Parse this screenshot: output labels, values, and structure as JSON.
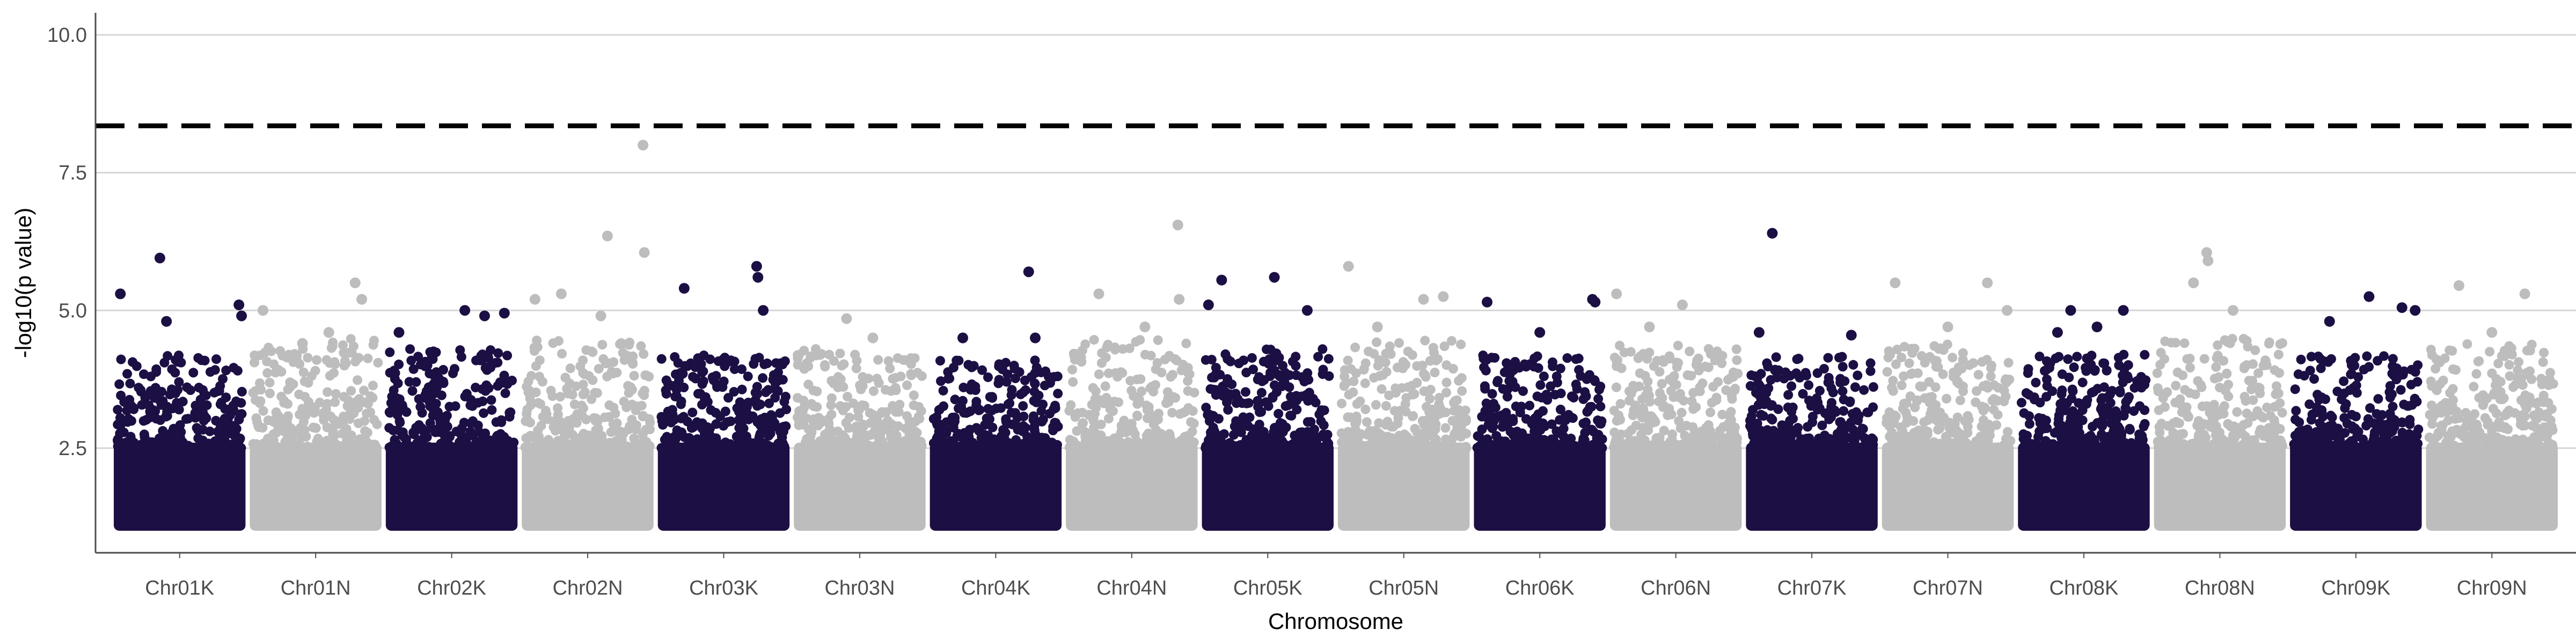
{
  "chart_data": {
    "type": "scatter",
    "subtype": "manhattan",
    "title": "",
    "xlabel": "Chromosome",
    "ylabel": "-log10(p value)",
    "ylim": [
      0.6,
      10.4
    ],
    "y_ticks": [
      2.5,
      5.0,
      7.5,
      10.0
    ],
    "y_tick_labels": [
      "2.5",
      "5.0",
      "7.5",
      "10.0"
    ],
    "grid": "horizontal major",
    "legend": "none",
    "threshold": {
      "value": 8.35,
      "style": "dashed",
      "color": "#000000"
    },
    "point_floor": 1.0,
    "colors": {
      "odd": "#1c0f44",
      "even": "#bdbdbd"
    },
    "categories": [
      "Chr01K",
      "Chr01N",
      "Chr02K",
      "Chr02N",
      "Chr03K",
      "Chr03N",
      "Chr04K",
      "Chr04N",
      "Chr05K",
      "Chr05N",
      "Chr06K",
      "Chr06N",
      "Chr07K",
      "Chr07N",
      "Chr08K",
      "Chr08N",
      "Chr09K",
      "Chr09N"
    ],
    "series": [
      {
        "chromosome": "Chr01K",
        "dense_top": 3.6,
        "outliers": [
          [
            0.05,
            5.3
          ],
          [
            0.35,
            5.95
          ],
          [
            0.4,
            4.8
          ],
          [
            0.95,
            5.1
          ],
          [
            0.97,
            4.9
          ]
        ]
      },
      {
        "chromosome": "Chr01N",
        "dense_top": 3.9,
        "outliers": [
          [
            0.1,
            5.0
          ],
          [
            0.4,
            4.4
          ],
          [
            0.8,
            5.5
          ],
          [
            0.85,
            5.2
          ],
          [
            0.6,
            4.6
          ]
        ]
      },
      {
        "chromosome": "Chr02K",
        "dense_top": 3.7,
        "outliers": [
          [
            0.6,
            5.0
          ],
          [
            0.75,
            4.9
          ],
          [
            0.9,
            4.95
          ],
          [
            0.1,
            4.6
          ]
        ]
      },
      {
        "chromosome": "Chr02N",
        "dense_top": 3.9,
        "outliers": [
          [
            0.1,
            5.2
          ],
          [
            0.3,
            5.3
          ],
          [
            0.65,
            6.35
          ],
          [
            0.92,
            8.0
          ],
          [
            0.93,
            6.05
          ],
          [
            0.6,
            4.9
          ]
        ]
      },
      {
        "chromosome": "Chr03K",
        "dense_top": 3.6,
        "outliers": [
          [
            0.2,
            5.4
          ],
          [
            0.75,
            5.8
          ],
          [
            0.76,
            5.6
          ],
          [
            0.8,
            5.0
          ]
        ]
      },
      {
        "chromosome": "Chr03N",
        "dense_top": 3.7,
        "outliers": [
          [
            0.4,
            4.85
          ],
          [
            0.6,
            4.5
          ],
          [
            0.2,
            4.2
          ]
        ]
      },
      {
        "chromosome": "Chr04K",
        "dense_top": 3.5,
        "outliers": [
          [
            0.25,
            4.5
          ],
          [
            0.75,
            5.7
          ],
          [
            0.8,
            4.5
          ]
        ]
      },
      {
        "chromosome": "Chr04N",
        "dense_top": 3.9,
        "outliers": [
          [
            0.25,
            5.3
          ],
          [
            0.85,
            6.55
          ],
          [
            0.86,
            5.2
          ],
          [
            0.6,
            4.7
          ]
        ]
      },
      {
        "chromosome": "Chr05K",
        "dense_top": 3.7,
        "outliers": [
          [
            0.05,
            5.1
          ],
          [
            0.15,
            5.55
          ],
          [
            0.55,
            5.6
          ],
          [
            0.8,
            5.0
          ]
        ]
      },
      {
        "chromosome": "Chr05N",
        "dense_top": 3.9,
        "outliers": [
          [
            0.08,
            5.8
          ],
          [
            0.65,
            5.2
          ],
          [
            0.8,
            5.25
          ],
          [
            0.3,
            4.7
          ]
        ]
      },
      {
        "chromosome": "Chr06K",
        "dense_top": 3.6,
        "outliers": [
          [
            0.1,
            5.15
          ],
          [
            0.9,
            5.2
          ],
          [
            0.92,
            5.15
          ],
          [
            0.5,
            4.6
          ]
        ]
      },
      {
        "chromosome": "Chr06N",
        "dense_top": 3.8,
        "outliers": [
          [
            0.05,
            5.3
          ],
          [
            0.55,
            5.1
          ],
          [
            0.3,
            4.7
          ]
        ]
      },
      {
        "chromosome": "Chr07K",
        "dense_top": 3.6,
        "outliers": [
          [
            0.2,
            6.4
          ],
          [
            0.1,
            4.6
          ],
          [
            0.8,
            4.55
          ]
        ]
      },
      {
        "chromosome": "Chr07N",
        "dense_top": 3.8,
        "outliers": [
          [
            0.1,
            5.5
          ],
          [
            0.8,
            5.5
          ],
          [
            0.95,
            5.0
          ],
          [
            0.5,
            4.7
          ]
        ]
      },
      {
        "chromosome": "Chr08K",
        "dense_top": 3.6,
        "outliers": [
          [
            0.4,
            5.0
          ],
          [
            0.8,
            5.0
          ],
          [
            0.3,
            4.6
          ],
          [
            0.6,
            4.7
          ]
        ]
      },
      {
        "chromosome": "Chr08N",
        "dense_top": 3.9,
        "outliers": [
          [
            0.4,
            6.05
          ],
          [
            0.41,
            5.9
          ],
          [
            0.3,
            5.5
          ],
          [
            0.6,
            5.0
          ]
        ]
      },
      {
        "chromosome": "Chr09K",
        "dense_top": 3.6,
        "outliers": [
          [
            0.6,
            5.25
          ],
          [
            0.85,
            5.05
          ],
          [
            0.95,
            5.0
          ],
          [
            0.3,
            4.8
          ]
        ]
      },
      {
        "chromosome": "Chr09N",
        "dense_top": 3.8,
        "outliers": [
          [
            0.25,
            5.45
          ],
          [
            0.75,
            5.3
          ],
          [
            0.5,
            4.6
          ]
        ]
      }
    ]
  }
}
